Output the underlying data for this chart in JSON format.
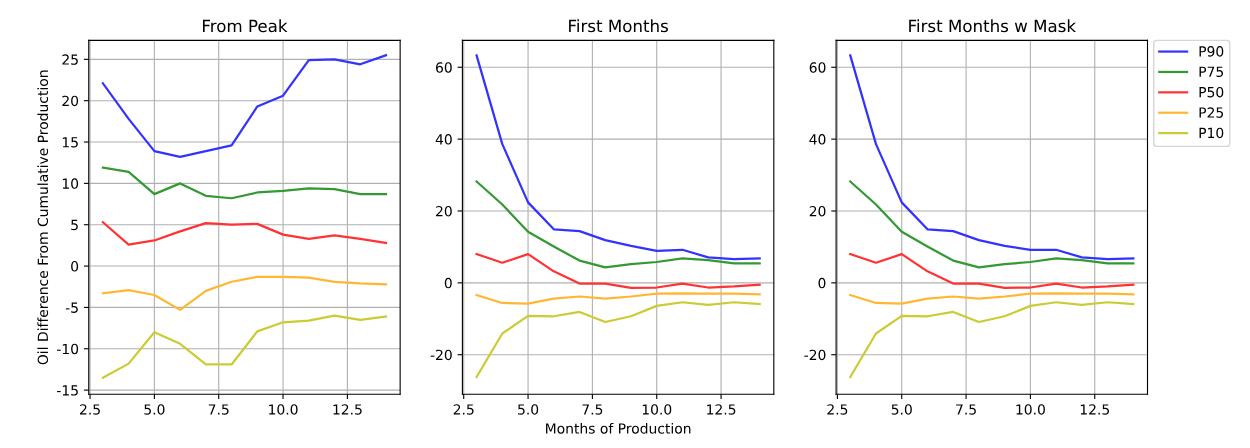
{
  "chart_data": [
    {
      "type": "line",
      "title": "From Peak",
      "ylabel": "Oil Difference From Cumulative Production",
      "x": [
        3,
        4,
        5,
        6,
        7,
        8,
        9,
        10,
        11,
        12,
        13,
        14
      ],
      "xlim": [
        2.45,
        14.55
      ],
      "xticks": [
        {
          "value": 2.5,
          "label": "2.5"
        },
        {
          "value": 5,
          "label": "5.0"
        },
        {
          "value": 7.5,
          "label": "7.5"
        },
        {
          "value": 10,
          "label": "10.0"
        },
        {
          "value": 12.5,
          "label": "12.5"
        }
      ],
      "ylim": [
        -15.5,
        27.3
      ],
      "yticks": [
        -15,
        -10,
        -5,
        0,
        5,
        10,
        15,
        20,
        25
      ],
      "grid": true,
      "legend": false,
      "series": [
        {
          "color": "#3333ff",
          "values": [
            22.1,
            17.8,
            13.9,
            13.2,
            13.9,
            14.6,
            19.3,
            20.6,
            24.9,
            25.0,
            24.4,
            25.5
          ]
        },
        {
          "color": "#339933",
          "values": [
            11.9,
            11.4,
            8.7,
            10.0,
            8.5,
            8.2,
            8.9,
            9.1,
            9.4,
            9.3,
            8.7,
            8.7
          ]
        },
        {
          "color": "#ff3333",
          "values": [
            5.3,
            2.6,
            3.1,
            4.2,
            5.2,
            5.0,
            5.1,
            3.8,
            3.3,
            3.7,
            3.3,
            2.8
          ]
        },
        {
          "color": "#ffb733",
          "values": [
            -3.3,
            -2.9,
            -3.5,
            -5.3,
            -3.0,
            -1.9,
            -1.3,
            -1.3,
            -1.4,
            -1.9,
            -2.1,
            -2.2
          ]
        },
        {
          "color": "#cbcb33",
          "values": [
            -13.5,
            -11.8,
            -8.0,
            -9.4,
            -11.9,
            -11.9,
            -7.9,
            -6.8,
            -6.6,
            -6.0,
            -6.5,
            -6.1
          ]
        }
      ]
    },
    {
      "type": "line",
      "title": "First Months",
      "xlabel": "Months of Production",
      "x": [
        3,
        4,
        5,
        6,
        7,
        8,
        9,
        10,
        11,
        12,
        13,
        14
      ],
      "xlim": [
        2.45,
        14.55
      ],
      "xticks": [
        {
          "value": 2.5,
          "label": "2.5"
        },
        {
          "value": 5,
          "label": "5.0"
        },
        {
          "value": 7.5,
          "label": "7.5"
        },
        {
          "value": 10,
          "label": "10.0"
        },
        {
          "value": 12.5,
          "label": "12.5"
        }
      ],
      "ylim": [
        -31,
        67.5
      ],
      "yticks": [
        -20,
        0,
        20,
        40,
        60
      ],
      "grid": true,
      "legend": false,
      "series": [
        {
          "color": "#3333ff",
          "values": [
            63.3,
            38.6,
            22.4,
            14.9,
            14.4,
            11.9,
            10.3,
            8.9,
            9.2,
            7.1,
            6.6,
            6.8
          ]
        },
        {
          "color": "#339933",
          "values": [
            28.2,
            21.8,
            14.2,
            10.1,
            6.2,
            4.3,
            5.2,
            5.8,
            6.8,
            6.3,
            5.4,
            5.4
          ]
        },
        {
          "color": "#ff3333",
          "values": [
            8.0,
            5.6,
            8.0,
            3.2,
            -0.2,
            -0.2,
            -1.4,
            -1.3,
            -0.2,
            -1.3,
            -1.0,
            -0.5
          ]
        },
        {
          "color": "#ffb733",
          "values": [
            -3.4,
            -5.6,
            -5.8,
            -4.4,
            -3.8,
            -4.4,
            -3.8,
            -3.0,
            -2.9,
            -3.0,
            -3.0,
            -3.2
          ]
        },
        {
          "color": "#cbcb33",
          "values": [
            -26.2,
            -14.1,
            -9.2,
            -9.3,
            -8.1,
            -10.9,
            -9.3,
            -6.4,
            -5.4,
            -6.1,
            -5.4,
            -5.9
          ]
        }
      ]
    },
    {
      "type": "line",
      "title": "First Months w Mask",
      "x": [
        3,
        4,
        5,
        6,
        7,
        8,
        9,
        10,
        11,
        12,
        13,
        14
      ],
      "xlim": [
        2.45,
        14.55
      ],
      "xticks": [
        {
          "value": 2.5,
          "label": "2.5"
        },
        {
          "value": 5,
          "label": "5.0"
        },
        {
          "value": 7.5,
          "label": "7.5"
        },
        {
          "value": 10,
          "label": "10.0"
        },
        {
          "value": 12.5,
          "label": "12.5"
        }
      ],
      "ylim": [
        -31,
        67.5
      ],
      "yticks": [
        -20,
        0,
        20,
        40,
        60
      ],
      "grid": true,
      "legend": "top right",
      "series": [
        {
          "name": "P90",
          "color": "#3333ff",
          "values": [
            63.3,
            38.6,
            22.4,
            14.9,
            14.4,
            11.9,
            10.3,
            9.2,
            9.2,
            7.1,
            6.6,
            6.8
          ]
        },
        {
          "name": "P75",
          "color": "#339933",
          "values": [
            28.2,
            21.8,
            14.2,
            10.1,
            6.2,
            4.3,
            5.2,
            5.8,
            6.8,
            6.3,
            5.4,
            5.4
          ]
        },
        {
          "name": "P50",
          "color": "#ff3333",
          "values": [
            8.0,
            5.6,
            8.0,
            3.2,
            -0.2,
            -0.2,
            -1.4,
            -1.3,
            -0.2,
            -1.3,
            -1.0,
            -0.5
          ]
        },
        {
          "name": "P25",
          "color": "#ffb733",
          "values": [
            -3.4,
            -5.6,
            -5.8,
            -4.4,
            -3.8,
            -4.4,
            -3.8,
            -3.0,
            -2.9,
            -3.0,
            -3.0,
            -3.2
          ]
        },
        {
          "name": "P10",
          "color": "#cbcb33",
          "values": [
            -26.2,
            -14.1,
            -9.2,
            -9.3,
            -8.1,
            -10.9,
            -9.3,
            -6.4,
            -5.4,
            -6.1,
            -5.4,
            -5.9
          ]
        }
      ]
    }
  ]
}
